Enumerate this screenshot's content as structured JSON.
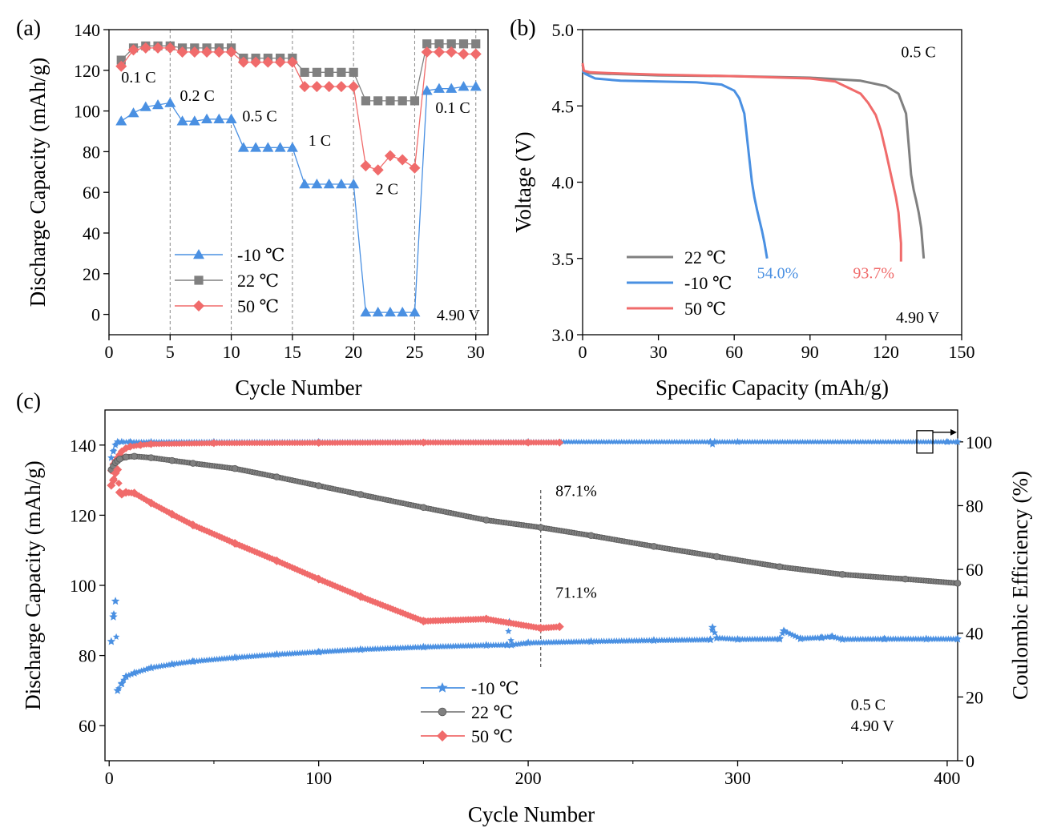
{
  "charts": [
    {
      "id": "a",
      "type": "line",
      "panel_label": "(a)",
      "xlabel": "Cycle Number",
      "ylabel": "Discharge Capacity (mAh/g)",
      "xlim": [
        0,
        31
      ],
      "ylim": [
        -10,
        140
      ],
      "x_ticks": [
        0,
        5,
        10,
        15,
        20,
        25,
        30
      ],
      "y_ticks": [
        0,
        20,
        40,
        60,
        80,
        100,
        120,
        140
      ],
      "dividers_x": [
        5,
        10,
        15,
        20,
        25,
        30
      ],
      "series": [
        {
          "name": "-10 ℃",
          "color": "#4A90E2",
          "marker": "triangle",
          "x": [
            1,
            2,
            3,
            4,
            5,
            6,
            7,
            8,
            9,
            10,
            11,
            12,
            13,
            14,
            15,
            16,
            17,
            18,
            19,
            20,
            21,
            22,
            23,
            24,
            25,
            26,
            27,
            28,
            29,
            30
          ],
          "y": [
            95,
            99,
            102,
            103,
            104,
            95,
            95,
            96,
            96,
            96,
            82,
            82,
            82,
            82,
            82,
            64,
            64,
            64,
            64,
            64,
            1,
            1,
            1,
            1,
            1,
            110,
            111,
            111,
            112,
            112
          ]
        },
        {
          "name": "22 ℃",
          "color": "#808080",
          "marker": "square",
          "x": [
            1,
            2,
            3,
            4,
            5,
            6,
            7,
            8,
            9,
            10,
            11,
            12,
            13,
            14,
            15,
            16,
            17,
            18,
            19,
            20,
            21,
            22,
            23,
            24,
            25,
            26,
            27,
            28,
            29,
            30
          ],
          "y": [
            125,
            131,
            132,
            132,
            132,
            131,
            131,
            131,
            131,
            131,
            126,
            126,
            126,
            126,
            126,
            119,
            119,
            119,
            119,
            119,
            105,
            105,
            105,
            105,
            105,
            133,
            133,
            133,
            133,
            133
          ]
        },
        {
          "name": "50 ℃",
          "color": "#F06B6B",
          "marker": "diamond",
          "x": [
            1,
            2,
            3,
            4,
            5,
            6,
            7,
            8,
            9,
            10,
            11,
            12,
            13,
            14,
            15,
            16,
            17,
            18,
            19,
            20,
            21,
            22,
            23,
            24,
            25,
            26,
            27,
            28,
            29,
            30
          ],
          "y": [
            122,
            130,
            131,
            131,
            131,
            129,
            129,
            129,
            129,
            129,
            124,
            124,
            124,
            124,
            124,
            112,
            112,
            112,
            112,
            112,
            73,
            71,
            78,
            76,
            72,
            129,
            129,
            129,
            128,
            128
          ]
        }
      ],
      "annotations": [
        {
          "text": "0.1 C",
          "x": 1,
          "y": 114
        },
        {
          "text": "0.2 C",
          "x": 5.8,
          "y": 105
        },
        {
          "text": "0.5 C",
          "x": 10.9,
          "y": 95
        },
        {
          "text": "1 C",
          "x": 16.3,
          "y": 83
        },
        {
          "text": "2 C",
          "x": 21.8,
          "y": 59
        },
        {
          "text": "0.1 C",
          "x": 26.7,
          "y": 99
        },
        {
          "text": "4.90 V",
          "x": 26.8,
          "y": -3
        }
      ],
      "legend": {
        "position": "lower-left",
        "entries": [
          {
            "label": "-10 ℃",
            "series": 0
          },
          {
            "label": "22 ℃",
            "series": 1
          },
          {
            "label": "50 ℃",
            "series": 2
          }
        ]
      }
    },
    {
      "id": "b",
      "type": "line",
      "panel_label": "(b)",
      "xlabel": "Specific Capacity (mAh/g)",
      "ylabel": "Voltage (V)",
      "xlim": [
        0,
        150
      ],
      "ylim": [
        3.0,
        5.0
      ],
      "x_ticks": [
        0,
        30,
        60,
        90,
        120,
        150
      ],
      "y_ticks": [
        3.0,
        3.5,
        4.0,
        4.5,
        5.0
      ],
      "y_tick_labels": [
        "3.0",
        "3.5",
        "4.0",
        "4.5",
        "5.0"
      ],
      "series": [
        {
          "name": "22 ℃",
          "color": "#808080",
          "x": [
            0,
            0.5,
            3,
            10,
            30,
            60,
            90,
            110,
            120,
            125,
            128,
            129,
            130,
            131,
            132,
            133,
            134,
            135
          ],
          "y": [
            4.77,
            4.72,
            4.715,
            4.71,
            4.7,
            4.695,
            4.685,
            4.665,
            4.63,
            4.58,
            4.45,
            4.25,
            4.05,
            3.95,
            3.88,
            3.8,
            3.7,
            3.5
          ]
        },
        {
          "name": "-10 ℃",
          "color": "#4A90E2",
          "x": [
            0,
            1,
            5,
            15,
            30,
            45,
            55,
            60,
            62,
            64,
            65,
            66,
            67,
            68,
            69,
            70,
            71,
            72,
            73
          ],
          "y": [
            4.73,
            4.71,
            4.68,
            4.665,
            4.66,
            4.655,
            4.64,
            4.6,
            4.55,
            4.45,
            4.3,
            4.15,
            4.0,
            3.9,
            3.82,
            3.75,
            3.68,
            3.6,
            3.5
          ]
        },
        {
          "name": "50 ℃",
          "color": "#F06B6B",
          "x": [
            0,
            0.5,
            3,
            10,
            30,
            60,
            90,
            100,
            105,
            110,
            113,
            116,
            118,
            120,
            122,
            124,
            125,
            125.5,
            126,
            126
          ],
          "y": [
            4.78,
            4.73,
            4.72,
            4.715,
            4.705,
            4.695,
            4.68,
            4.66,
            4.62,
            4.58,
            4.52,
            4.44,
            4.34,
            4.2,
            4.05,
            3.9,
            3.8,
            3.7,
            3.6,
            3.48
          ]
        }
      ],
      "annotations": [
        {
          "text": "0.5 C",
          "x": 126,
          "y": 4.82
        },
        {
          "text": "54.0%",
          "x": 69,
          "y": 3.37,
          "color": "#4A90E2"
        },
        {
          "text": "93.7%",
          "x": 107,
          "y": 3.37,
          "color": "#F06B6B"
        },
        {
          "text": "4.90 V",
          "x": 124,
          "y": 3.08
        }
      ],
      "legend": {
        "position": "lower-left",
        "entries": [
          {
            "label": "22 ℃",
            "series": 0
          },
          {
            "label": "-10 ℃",
            "series": 1
          },
          {
            "label": "50 ℃",
            "series": 2
          }
        ]
      }
    },
    {
      "id": "c",
      "type": "scatter",
      "panel_label": "(c)",
      "xlabel": "Cycle Number",
      "ylabel": "Discharge Capacity (mAh/g)",
      "ylabel_right": "Coulombic Efficiency (%)",
      "xlim": [
        -2,
        405
      ],
      "ylim": [
        50,
        150
      ],
      "ylim_right": [
        0,
        110
      ],
      "x_ticks": [
        0,
        100,
        200,
        300,
        400
      ],
      "y_ticks": [
        60,
        80,
        100,
        120,
        140
      ],
      "y_ticks_right": [
        0,
        20,
        40,
        60,
        80,
        100
      ],
      "marker_line_x": 206,
      "capacity_series": [
        {
          "name": "-10 ℃",
          "color": "#4A90E2",
          "marker": "star",
          "x": [
            1,
            2,
            3,
            4,
            6,
            8,
            12,
            20,
            30,
            40,
            60,
            80,
            100,
            120,
            150,
            180,
            190,
            191,
            192,
            200,
            230,
            260,
            287,
            288,
            290,
            300,
            320,
            322,
            330,
            340,
            345,
            350,
            370,
            390,
            405
          ],
          "y": [
            84,
            91,
            95.5,
            70,
            72,
            74,
            75,
            76.5,
            77.5,
            78.3,
            79.4,
            80.3,
            81,
            81.7,
            82.4,
            82.9,
            83,
            89.5,
            83,
            83.6,
            84,
            84.3,
            84.5,
            88,
            85,
            84.6,
            84.7,
            87,
            84.8,
            85.1,
            85.4,
            84.6,
            84.7,
            84.7,
            84.7
          ]
        },
        {
          "name": "22 ℃",
          "color": "#808080",
          "marker": "circle",
          "x": [
            1,
            2,
            3,
            4,
            5,
            8,
            12,
            20,
            30,
            40,
            60,
            80,
            100,
            120,
            150,
            180,
            206,
            230,
            260,
            290,
            320,
            350,
            380,
            405
          ],
          "y": [
            133,
            134,
            135,
            135.5,
            136,
            136.6,
            136.8,
            136.4,
            135.6,
            134.8,
            133.3,
            130.9,
            128.4,
            125.9,
            122.2,
            118.6,
            116.5,
            114.2,
            111.1,
            108.2,
            105.3,
            103.1,
            101.8,
            100.6
          ]
        },
        {
          "name": "50 ℃",
          "color": "#F06B6B",
          "marker": "diamond",
          "x": [
            1,
            2,
            3,
            4,
            5,
            6,
            8,
            12,
            20,
            30,
            40,
            60,
            80,
            100,
            120,
            150,
            180,
            206,
            215
          ],
          "y": [
            128.5,
            130,
            132,
            133,
            126.5,
            126,
            126.5,
            126.3,
            123.5,
            120.3,
            117.2,
            112,
            107,
            101.8,
            96.8,
            89.8,
            90.4,
            87.8,
            88.2
          ]
        }
      ],
      "efficiency_series": [
        {
          "name": "-10 ℃ CE",
          "color": "#4A90E2",
          "marker": "star",
          "x": [
            1,
            2,
            3,
            4,
            6,
            10,
            20,
            50,
            100,
            200,
            287,
            288,
            289,
            300,
            400,
            405
          ],
          "y": [
            95,
            97,
            99,
            100,
            100,
            100,
            100,
            100,
            100,
            100,
            100,
            99.3,
            100,
            100,
            100,
            100
          ]
        },
        {
          "name": "50 ℃ CE",
          "color": "#F06B6B",
          "marker": "diamond",
          "x": [
            1,
            2,
            3,
            4,
            5,
            6,
            8,
            10,
            15,
            20,
            50,
            100,
            150,
            200,
            215
          ],
          "y": [
            91,
            93,
            94,
            95,
            96,
            97,
            98,
            98.5,
            99,
            99.3,
            99.6,
            99.7,
            99.8,
            99.8,
            99.8
          ]
        }
      ],
      "annotations": [
        {
          "text": "87.1%",
          "x": 213,
          "y": 125.5
        },
        {
          "text": "71.1%",
          "x": 213,
          "y": 96.5
        },
        {
          "text": "0.5 C",
          "x": 354,
          "y": 64.5
        },
        {
          "text": "4.90 V",
          "x": 354,
          "y": 58.5
        }
      ],
      "legend": {
        "position": "bottom-center",
        "entries": [
          {
            "label": "-10 ℃",
            "series": 0
          },
          {
            "label": "22 ℃",
            "series": 1
          },
          {
            "label": "50 ℃",
            "series": 2
          }
        ]
      }
    }
  ]
}
